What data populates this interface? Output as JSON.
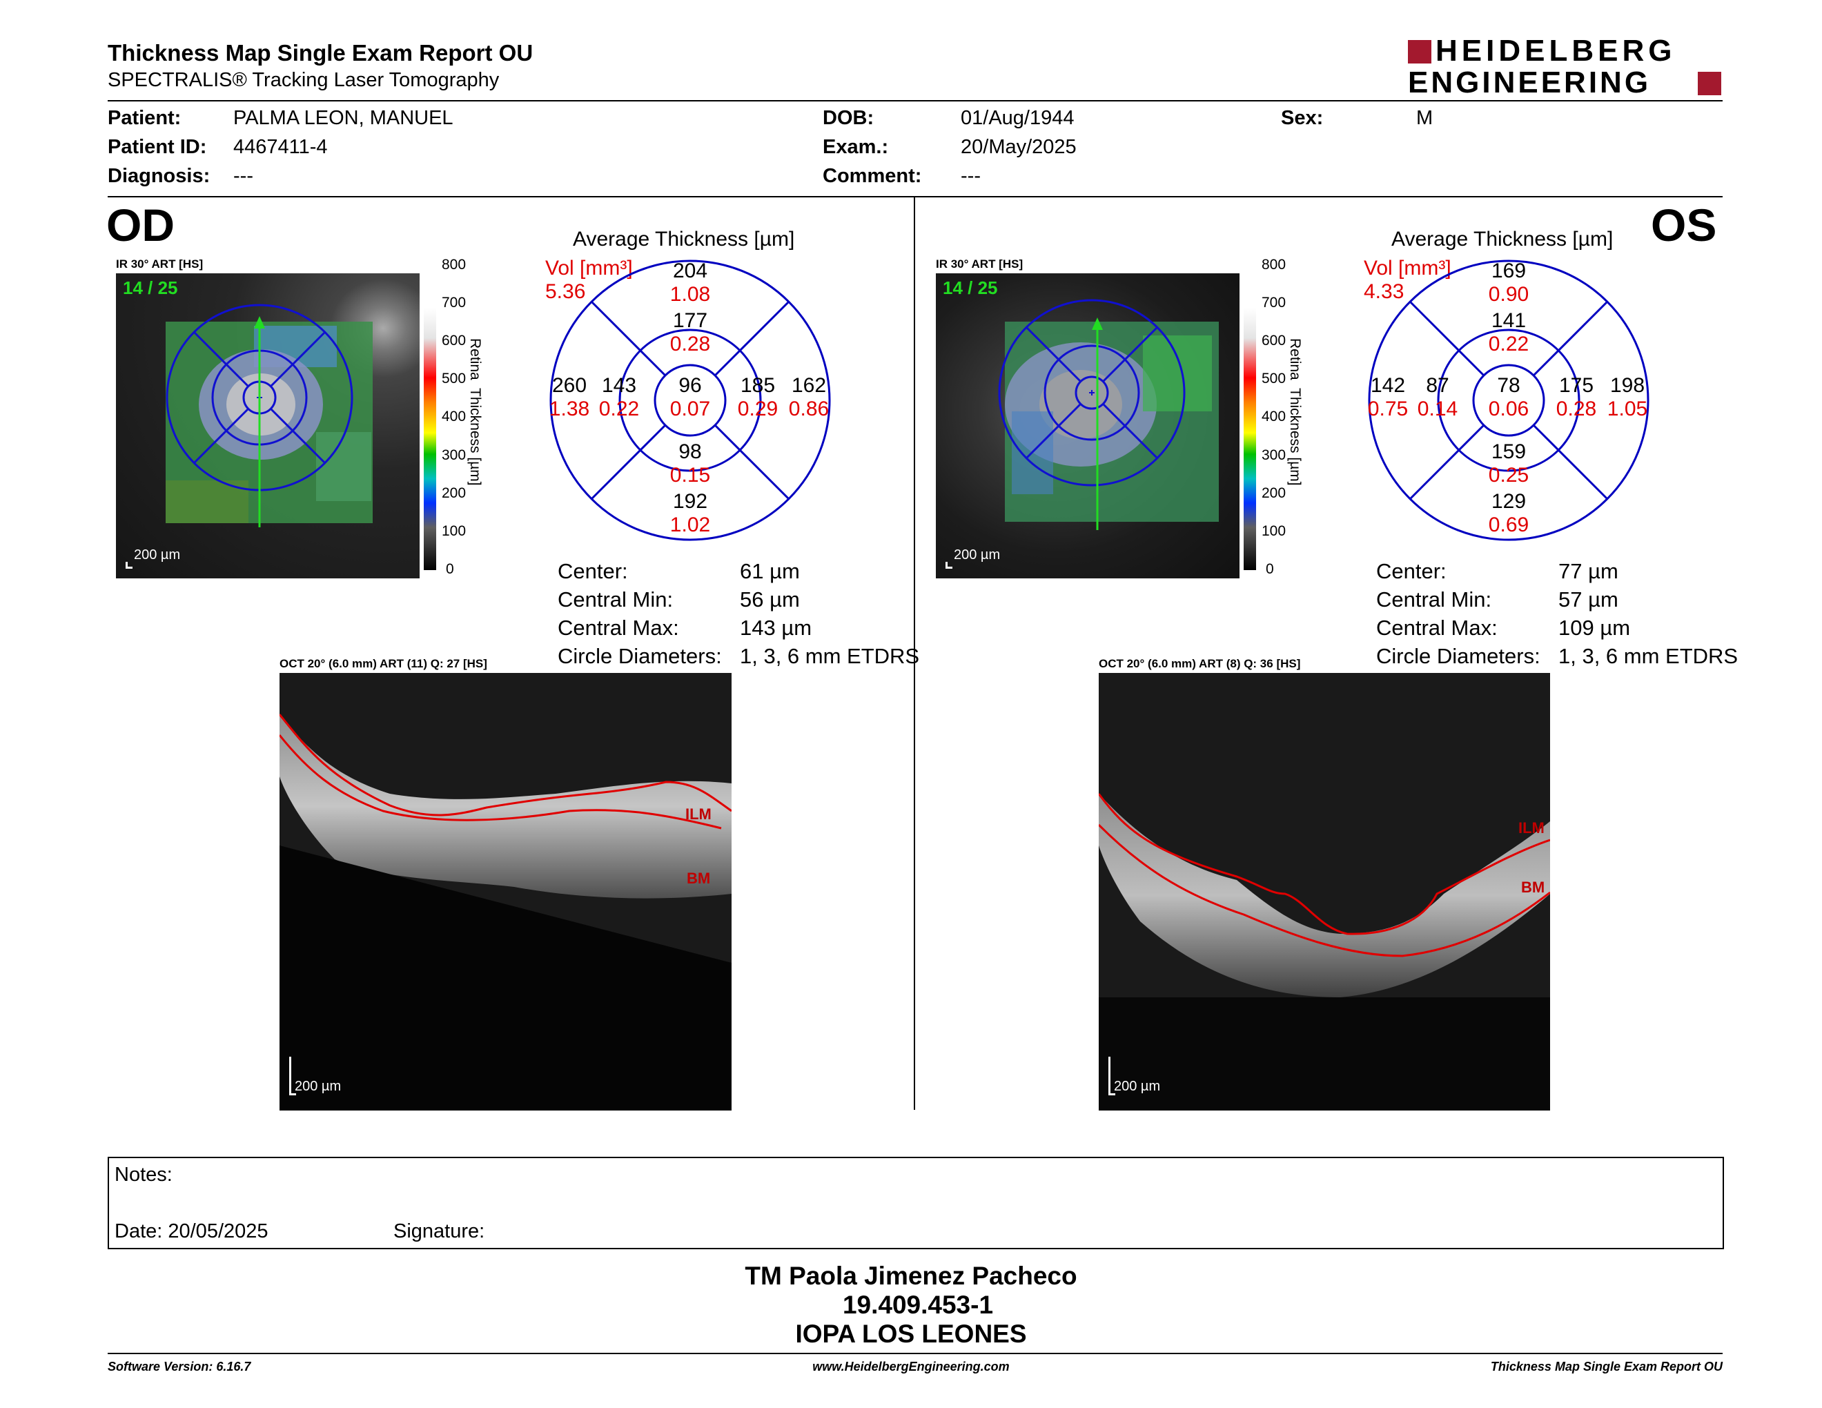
{
  "header": {
    "title": "Thickness Map Single Exam Report OU",
    "subtitle": "SPECTRALIS® Tracking Laser Tomography",
    "logo_line1": "HEIDELBERG",
    "logo_line2": "ENGINEERING"
  },
  "patient": {
    "patient_label": "Patient:",
    "patient_value": "PALMA LEON, MANUEL",
    "id_label": "Patient ID:",
    "id_value": "4467411-4",
    "diag_label": "Diagnosis:",
    "diag_value": "---",
    "dob_label": "DOB:",
    "dob_value": "01/Aug/1944",
    "exam_label": "Exam.:",
    "exam_value": "20/May/2025",
    "comment_label": "Comment:",
    "comment_value": "---",
    "sex_label": "Sex:",
    "sex_value": "M"
  },
  "scale": {
    "ticks": [
      "800",
      "700",
      "600",
      "500",
      "400",
      "300",
      "200",
      "100",
      "0"
    ],
    "title": "Retina  Thickness [µm]"
  },
  "od": {
    "eye": "OD",
    "ir_label": "IR 30° ART [HS]",
    "frame": "14 / 25",
    "ir_scalebar": "200 µm",
    "avg_title": "Average Thickness [µm]",
    "vol_label": "Vol [mm³]",
    "vol_value": "5.36",
    "center_t": "96",
    "center_v": "0.07",
    "inner_sup_t": "177",
    "inner_sup_v": "0.28",
    "inner_inf_t": "98",
    "inner_inf_v": "0.15",
    "inner_left_t": "143",
    "inner_left_v": "0.22",
    "inner_right_t": "185",
    "inner_right_v": "0.29",
    "outer_sup_t": "204",
    "outer_sup_v": "1.08",
    "outer_inf_t": "192",
    "outer_inf_v": "1.02",
    "outer_left_t": "260",
    "outer_left_v": "1.38",
    "outer_right_t": "162",
    "outer_right_v": "0.86",
    "stats": {
      "center_label": "Center:",
      "center_value": "61 µm",
      "min_label": "Central Min:",
      "min_value": "56 µm",
      "max_label": "Central Max:",
      "max_value": "143 µm",
      "diam_label": "Circle Diameters:",
      "diam_value": "1, 3, 6 mm ETDRS"
    },
    "oct_label": "OCT 20° (6.0 mm) ART (11) Q: 27 [HS]",
    "oct_scalebar": "200 µm",
    "ilm": "ILM",
    "bm": "BM"
  },
  "os": {
    "eye": "OS",
    "ir_label": "IR 30° ART [HS]",
    "frame": "14 / 25",
    "ir_scalebar": "200 µm",
    "avg_title": "Average Thickness [µm]",
    "vol_label": "Vol [mm³]",
    "vol_value": "4.33",
    "center_t": "78",
    "center_v": "0.06",
    "inner_sup_t": "141",
    "inner_sup_v": "0.22",
    "inner_inf_t": "159",
    "inner_inf_v": "0.25",
    "inner_left_t": "87",
    "inner_left_v": "0.14",
    "inner_right_t": "175",
    "inner_right_v": "0.28",
    "outer_sup_t": "169",
    "outer_sup_v": "0.90",
    "outer_inf_t": "129",
    "outer_inf_v": "0.69",
    "outer_left_t": "142",
    "outer_left_v": "0.75",
    "outer_right_t": "198",
    "outer_right_v": "1.05",
    "stats": {
      "center_label": "Center:",
      "center_value": "77 µm",
      "min_label": "Central Min:",
      "min_value": "57 µm",
      "max_label": "Central Max:",
      "max_value": "109 µm",
      "diam_label": "Circle Diameters:",
      "diam_value": "1, 3, 6 mm ETDRS"
    },
    "oct_label": "OCT 20° (6.0 mm) ART (8) Q: 36 [HS]",
    "oct_scalebar": "200 µm",
    "ilm": "ILM",
    "bm": "BM"
  },
  "notes": {
    "notes_label": "Notes:",
    "date_label": "Date: 20/05/2025",
    "signature_label": "Signature:"
  },
  "signer": {
    "name": "TM Paola Jimenez Pacheco",
    "rut": "19.409.453-1",
    "institution": "IOPA LOS LEONES"
  },
  "footer": {
    "software": "Software Version: 6.16.7",
    "website": "www.HeidelbergEngineering.com",
    "report": "Thickness Map Single Exam Report OU"
  },
  "colors": {
    "logo_red": "#a3192e",
    "value_red": "#e00000",
    "grid_blue": "#0000c0",
    "scan_green": "#22dd22"
  }
}
